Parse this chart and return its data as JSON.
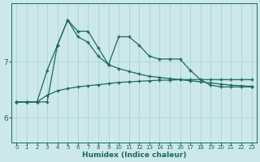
{
  "xlabel": "Humidex (Indice chaleur)",
  "background_color": "#cce8e8",
  "grid_color": "#aad4d4",
  "line_color": "#1a6b5a",
  "x_ticks": [
    0,
    1,
    2,
    3,
    4,
    5,
    6,
    7,
    8,
    9,
    10,
    11,
    12,
    13,
    14,
    15,
    16,
    17,
    18,
    19,
    20,
    21,
    22,
    23
  ],
  "y_ticks": [
    6,
    7
  ],
  "ylim": [
    5.55,
    8.05
  ],
  "xlim": [
    -0.5,
    23.5
  ],
  "series_top_x": [
    0,
    1,
    2,
    3,
    4,
    5,
    6,
    7,
    8,
    9,
    10,
    11,
    12,
    13,
    14,
    15,
    16,
    17,
    18,
    19,
    20,
    21,
    22,
    23
  ],
  "series_top_y": [
    6.28,
    6.28,
    6.28,
    6.28,
    7.3,
    7.75,
    7.55,
    7.55,
    7.25,
    6.95,
    7.45,
    7.45,
    7.3,
    7.1,
    7.05,
    7.05,
    7.05,
    6.85,
    6.68,
    6.58,
    6.55,
    6.55,
    6.55,
    6.55
  ],
  "series_mid_x": [
    0,
    1,
    2,
    3,
    4,
    5,
    6,
    7,
    8,
    9,
    10,
    11,
    12,
    13,
    14,
    15,
    16,
    17,
    18,
    19,
    20,
    21,
    22,
    23
  ],
  "series_mid_y": [
    6.28,
    6.28,
    6.28,
    6.85,
    7.3,
    7.75,
    7.45,
    7.35,
    7.1,
    6.95,
    6.88,
    6.83,
    6.78,
    6.74,
    6.72,
    6.7,
    6.68,
    6.66,
    6.64,
    6.62,
    6.6,
    6.58,
    6.57,
    6.56
  ],
  "series_bot_x": [
    0,
    1,
    2,
    3,
    4,
    5,
    6,
    7,
    8,
    9,
    10,
    11,
    12,
    13,
    14,
    15,
    16,
    17,
    18,
    19,
    20,
    21,
    22,
    23
  ],
  "series_bot_y": [
    6.28,
    6.28,
    6.28,
    6.4,
    6.48,
    6.52,
    6.55,
    6.57,
    6.59,
    6.61,
    6.63,
    6.64,
    6.65,
    6.66,
    6.67,
    6.67,
    6.68,
    6.68,
    6.68,
    6.68,
    6.68,
    6.68,
    6.68,
    6.68
  ]
}
